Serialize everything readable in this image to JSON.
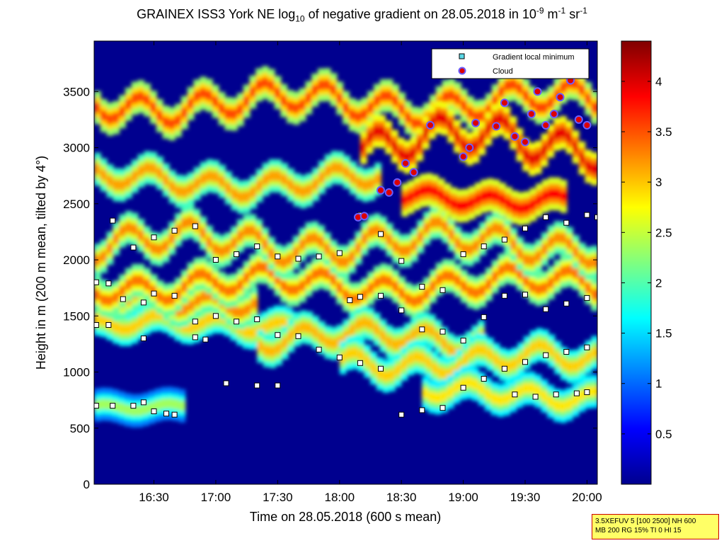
{
  "chart_data": {
    "type": "heatmap",
    "title": {
      "p1": "GRAINEX ISS3 York NE log",
      "sub": "10",
      "p2": " of negative gradient on 28.05.2018 in 10",
      "sup1": "-9",
      "p3": " m",
      "sup2": "-1",
      "p4": " sr",
      "sup3": "-1"
    },
    "xlabel": "Time on 28.05.2018 (600 s mean)",
    "ylabel": "Height in m (200 m mean, tilted by 4°)",
    "x_unit": "minutes since midnight",
    "xlim": [
      961,
      1205
    ],
    "ylim": [
      0,
      3950
    ],
    "x_ticks": [
      {
        "label": "16:30",
        "value": 990
      },
      {
        "label": "17:00",
        "value": 1020
      },
      {
        "label": "17:30",
        "value": 1050
      },
      {
        "label": "18:00",
        "value": 1080
      },
      {
        "label": "18:30",
        "value": 1110
      },
      {
        "label": "19:00",
        "value": 1140
      },
      {
        "label": "19:30",
        "value": 1170
      },
      {
        "label": "20:00",
        "value": 1200
      }
    ],
    "y_ticks": [
      {
        "label": "0",
        "value": 0
      },
      {
        "label": "500",
        "value": 500
      },
      {
        "label": "1000",
        "value": 1000
      },
      {
        "label": "1500",
        "value": 1500
      },
      {
        "label": "2000",
        "value": 2000
      },
      {
        "label": "2500",
        "value": 2500
      },
      {
        "label": "3000",
        "value": 3000
      },
      {
        "label": "3500",
        "value": 3500
      }
    ],
    "colorbar": {
      "range": [
        0,
        4.4
      ],
      "ticks": [
        {
          "label": "0.5",
          "value": 0.5
        },
        {
          "label": "1",
          "value": 1
        },
        {
          "label": "1.5",
          "value": 1.5
        },
        {
          "label": "2",
          "value": 2
        },
        {
          "label": "2.5",
          "value": 2.5
        },
        {
          "label": "3",
          "value": 3
        },
        {
          "label": "3.5",
          "value": 3.5
        },
        {
          "label": "4",
          "value": 4
        }
      ]
    },
    "layers": [
      {
        "height_m": 700,
        "start": 961,
        "end": 1005,
        "value": 2.0,
        "amp": 30
      },
      {
        "height_m": 1420,
        "start": 961,
        "end": 1060,
        "value": 2.6,
        "amp": 60
      },
      {
        "height_m": 1650,
        "start": 961,
        "end": 1040,
        "value": 2.9,
        "amp": 80
      },
      {
        "height_m": 1780,
        "start": 961,
        "end": 1205,
        "value": 3.0,
        "amp": 100
      },
      {
        "height_m": 2150,
        "start": 961,
        "end": 1205,
        "value": 2.9,
        "amp": 120
      },
      {
        "height_m": 1300,
        "start": 1040,
        "end": 1150,
        "value": 2.7,
        "amp": 90
      },
      {
        "height_m": 1100,
        "start": 1080,
        "end": 1205,
        "value": 2.6,
        "amp": 90
      },
      {
        "height_m": 800,
        "start": 1120,
        "end": 1205,
        "value": 2.5,
        "amp": 70
      },
      {
        "height_m": 2700,
        "start": 961,
        "end": 1100,
        "value": 2.8,
        "amp": 90
      },
      {
        "height_m": 3400,
        "start": 961,
        "end": 1205,
        "value": 3.2,
        "amp": 120
      },
      {
        "height_m": 3050,
        "start": 1090,
        "end": 1205,
        "value": 3.6,
        "amp": 150
      },
      {
        "height_m": 2550,
        "start": 1110,
        "end": 1190,
        "value": 3.5,
        "amp": 60
      }
    ],
    "series": [
      {
        "name": "Gradient local minimum",
        "marker": "square",
        "color": "#ffffff",
        "points": [
          [
            962,
            700
          ],
          [
            970,
            700
          ],
          [
            980,
            700
          ],
          [
            985,
            730
          ],
          [
            990,
            650
          ],
          [
            996,
            630
          ],
          [
            1000,
            620
          ],
          [
            962,
            1800
          ],
          [
            968,
            1790
          ],
          [
            975,
            1650
          ],
          [
            985,
            1620
          ],
          [
            990,
            1700
          ],
          [
            1000,
            1680
          ],
          [
            962,
            1420
          ],
          [
            968,
            1420
          ],
          [
            985,
            1300
          ],
          [
            1010,
            1450
          ],
          [
            1020,
            1500
          ],
          [
            1030,
            1450
          ],
          [
            1040,
            1470
          ],
          [
            1050,
            1330
          ],
          [
            1060,
            1320
          ],
          [
            1070,
            1200
          ],
          [
            1080,
            1130
          ],
          [
            1090,
            1080
          ],
          [
            1100,
            1030
          ],
          [
            1010,
            1310
          ],
          [
            1015,
            1290
          ],
          [
            1025,
            900
          ],
          [
            1040,
            880
          ],
          [
            1050,
            880
          ],
          [
            1110,
            620
          ],
          [
            1120,
            660
          ],
          [
            1130,
            680
          ],
          [
            1140,
            860
          ],
          [
            1150,
            940
          ],
          [
            1160,
            1030
          ],
          [
            1165,
            800
          ],
          [
            1175,
            780
          ],
          [
            1185,
            800
          ],
          [
            1195,
            810
          ],
          [
            1200,
            820
          ],
          [
            1170,
            1090
          ],
          [
            1180,
            1150
          ],
          [
            1190,
            1180
          ],
          [
            1200,
            1220
          ],
          [
            1085,
            1640
          ],
          [
            1090,
            1670
          ],
          [
            1100,
            1680
          ],
          [
            1110,
            1550
          ],
          [
            1120,
            1380
          ],
          [
            1130,
            1360
          ],
          [
            1140,
            1280
          ],
          [
            1150,
            1490
          ],
          [
            1160,
            1680
          ],
          [
            1170,
            1690
          ],
          [
            1180,
            1560
          ],
          [
            1190,
            1610
          ],
          [
            1200,
            1660
          ],
          [
            970,
            2350
          ],
          [
            980,
            2110
          ],
          [
            990,
            2200
          ],
          [
            1000,
            2260
          ],
          [
            1010,
            2300
          ],
          [
            1020,
            2000
          ],
          [
            1030,
            2050
          ],
          [
            1040,
            2120
          ],
          [
            1050,
            2030
          ],
          [
            1060,
            2010
          ],
          [
            1070,
            2030
          ],
          [
            1080,
            2060
          ],
          [
            1090,
            2400
          ],
          [
            1100,
            2230
          ],
          [
            1110,
            1990
          ],
          [
            1120,
            1760
          ],
          [
            1130,
            1730
          ],
          [
            1140,
            2050
          ],
          [
            1150,
            2120
          ],
          [
            1160,
            2180
          ],
          [
            1170,
            2280
          ],
          [
            1180,
            2380
          ],
          [
            1190,
            2330
          ],
          [
            1200,
            2400
          ],
          [
            1205,
            2380
          ]
        ]
      },
      {
        "name": "Cloud",
        "marker": "circle",
        "color": "#dd0000",
        "points": [
          [
            1089,
            2380
          ],
          [
            1092,
            2390
          ],
          [
            1100,
            2620
          ],
          [
            1104,
            2600
          ],
          [
            1108,
            2690
          ],
          [
            1112,
            2860
          ],
          [
            1116,
            2780
          ],
          [
            1124,
            3200
          ],
          [
            1140,
            2920
          ],
          [
            1143,
            3000
          ],
          [
            1146,
            3220
          ],
          [
            1156,
            3190
          ],
          [
            1160,
            3400
          ],
          [
            1165,
            3100
          ],
          [
            1170,
            3050
          ],
          [
            1173,
            3300
          ],
          [
            1176,
            3500
          ],
          [
            1180,
            3200
          ],
          [
            1184,
            3300
          ],
          [
            1187,
            3450
          ],
          [
            1192,
            3600
          ],
          [
            1196,
            3250
          ],
          [
            1200,
            3200
          ]
        ]
      }
    ],
    "legend_position": "top-right"
  },
  "stamp": {
    "line1": "3.5XEFUV 5 [100 2500] NH 600",
    "line2": "MB 200 RG 15% TI 0 HI 15"
  }
}
